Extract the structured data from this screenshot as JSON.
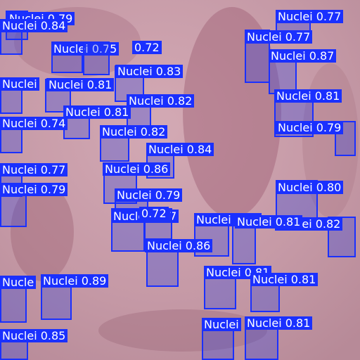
{
  "image": {
    "description_colors": {
      "tissue_light": "#c79aa6",
      "tissue_dark": "#8a5268",
      "box_color": "#1a30ff",
      "label_text": "#ffffff"
    }
  },
  "detections": [
    {
      "label": "Nuclei 0.79"
    },
    {
      "label": "Nuclei 0.84"
    },
    {
      "label": "Nuclei 0.75"
    },
    {
      "label": "0.72"
    },
    {
      "label": "Nuclei 0.83"
    },
    {
      "label": "Nuclei"
    },
    {
      "label": "Nuclei 0.81"
    },
    {
      "label": "Nuclei 0.82"
    },
    {
      "label": "Nuclei 0.81"
    },
    {
      "label": "Nuclei 0.74"
    },
    {
      "label": "Nuclei 0.82"
    },
    {
      "label": "Nuclei 0.84"
    },
    {
      "label": "Nuclei 0.77"
    },
    {
      "label": "Nuclei 0.86"
    },
    {
      "label": "Nuclei 0.79"
    },
    {
      "label": "Nuclei 0.79"
    },
    {
      "label": "Nuclei 0.77"
    },
    {
      "label": "0.72"
    },
    {
      "label": "Nuclei 0.83"
    },
    {
      "label": "Nuclei 0.86"
    },
    {
      "label": "Nucle"
    },
    {
      "label": "Nuclei 0.89"
    },
    {
      "label": "Nuclei 0.81"
    },
    {
      "label": "Nuclei 0.81"
    },
    {
      "label": "Nuclei"
    },
    {
      "label": "Nuclei 0.85"
    },
    {
      "label": "Nuclei 0.81"
    },
    {
      "label": "Nuclei 0.77"
    },
    {
      "label": "Nuclei 0.77"
    },
    {
      "label": "Nuclei 0.87"
    },
    {
      "label": "Nuclei 0.81"
    },
    {
      "label": "Nuclei 0.79"
    },
    {
      "label": "Nuclei 0.80"
    },
    {
      "label": "Nuclei 0.82"
    },
    {
      "label": "Nuclei 0.81"
    }
  ]
}
